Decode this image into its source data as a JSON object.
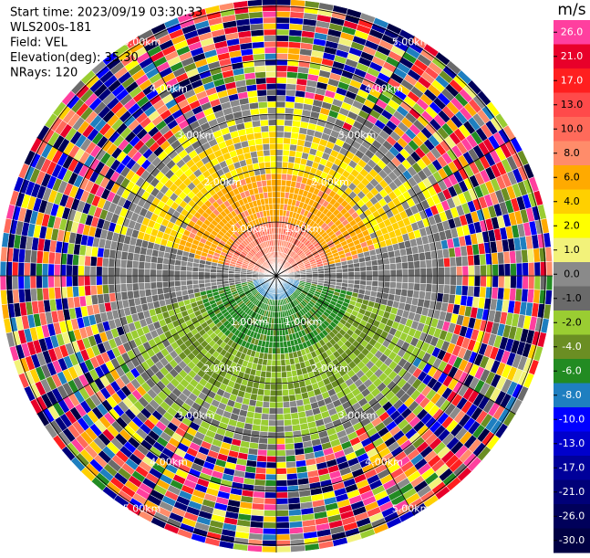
{
  "chart_data": {
    "type": "ppi",
    "header": [
      "Start time: 2023/09/19 03:30:33",
      "WLS200s-181",
      "Field: VEL",
      "Elevation(deg): 35.30",
      "NRays: 120"
    ],
    "rings": [
      {
        "value": 1,
        "label": "1.00km"
      },
      {
        "value": 2,
        "label": "2.00km"
      },
      {
        "value": 3,
        "label": "3.00km"
      },
      {
        "value": 4,
        "label": "4.00km"
      },
      {
        "value": 5,
        "label": "5.00km"
      }
    ],
    "colorbar": {
      "unit": "m/s",
      "ticks": [
        {
          "value": 26,
          "label": "26.0"
        },
        {
          "value": 21,
          "label": "21.0"
        },
        {
          "value": 17,
          "label": "17.0"
        },
        {
          "value": 13,
          "label": "13.0"
        },
        {
          "value": 10,
          "label": "10.0"
        },
        {
          "value": 8,
          "label": "8.0"
        },
        {
          "value": 6,
          "label": "6.0"
        },
        {
          "value": 4,
          "label": "4.0"
        },
        {
          "value": 2,
          "label": "2.0"
        },
        {
          "value": 1,
          "label": "1.0"
        },
        {
          "value": 0,
          "label": "0.0"
        },
        {
          "value": -1,
          "label": "-1.0"
        },
        {
          "value": -2,
          "label": "-2.0"
        },
        {
          "value": -4,
          "label": "-4.0"
        },
        {
          "value": -6,
          "label": "-6.0"
        },
        {
          "value": -8,
          "label": "-8.0"
        },
        {
          "value": -10,
          "label": "-10.0"
        },
        {
          "value": -13,
          "label": "-13.0"
        },
        {
          "value": -17,
          "label": "-17.0"
        },
        {
          "value": -21,
          "label": "-21.0"
        },
        {
          "value": -26,
          "label": "-26.0"
        },
        {
          "value": -30,
          "label": "-30.0"
        }
      ],
      "colors": [
        "#ff3f9f",
        "#e8002a",
        "#ff1f1f",
        "#ff4a4a",
        "#ff6a5a",
        "#ff8c6a",
        "#ffaa00",
        "#ffd000",
        "#ffff00",
        "#f2f27a",
        "#8a8a8a",
        "#6a6a6a",
        "#9acd32",
        "#6b8e23",
        "#228b22",
        "#1e7fc0",
        "#0000ff",
        "#0000cc",
        "#00009a",
        "#000078",
        "#00005a",
        "#000044"
      ]
    }
  }
}
